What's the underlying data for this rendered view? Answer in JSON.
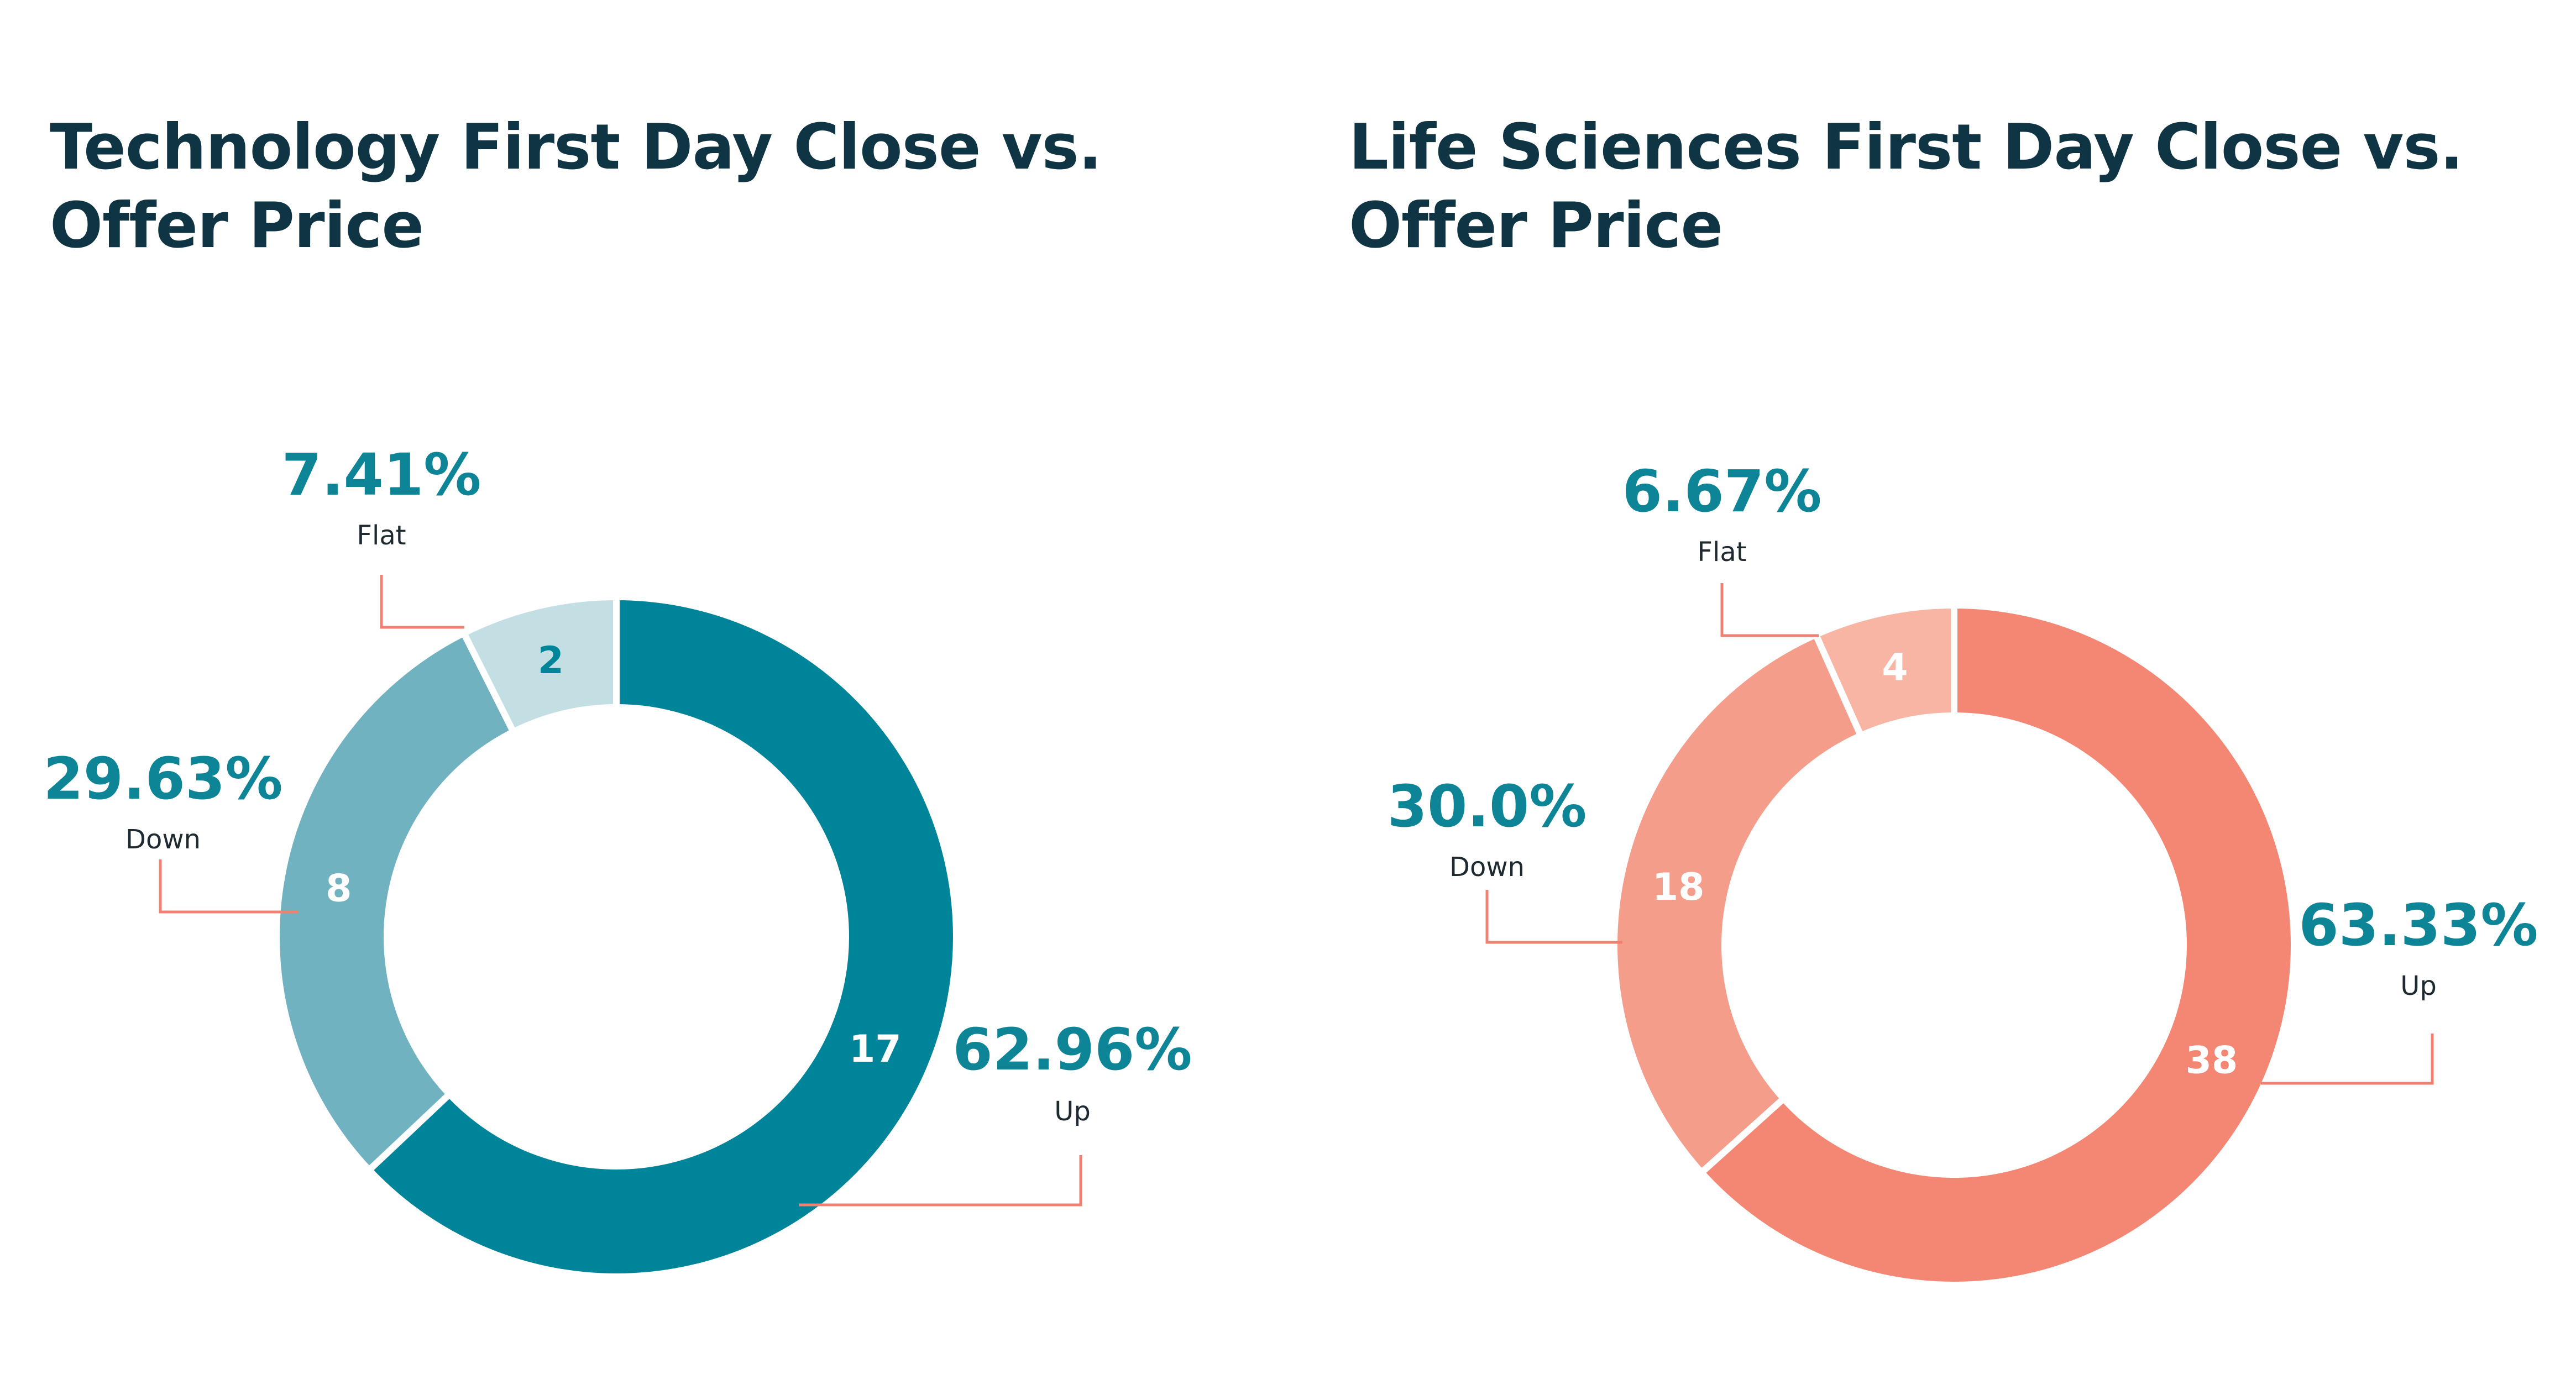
{
  "colors": {
    "title": "#0f3443",
    "percent_text": "#0e8597",
    "label_text": "#1f2a30",
    "leader": "#f08070",
    "separator": "#ffffff"
  },
  "chart_data": [
    {
      "type": "pie",
      "title": "Technology First Day Close vs.\nOffer Price",
      "slices": [
        {
          "name": "Up",
          "value": 17,
          "percent": "62.96%",
          "color": "#00849a",
          "value_text_color": "#ffffff"
        },
        {
          "name": "Down",
          "value": 8,
          "percent": "29.63%",
          "color": "#71b2c1",
          "value_text_color": "#ffffff"
        },
        {
          "name": "Flat",
          "value": 2,
          "percent": "7.41%",
          "color": "#c3dfe4",
          "value_text_color": "#00849a"
        }
      ]
    },
    {
      "type": "pie",
      "title": "Life Sciences First Day Close vs.\nOffer Price",
      "slices": [
        {
          "name": "Up",
          "value": 38,
          "percent": "63.33%",
          "color": "#f48774",
          "value_text_color": "#ffffff"
        },
        {
          "name": "Down",
          "value": 18,
          "percent": "30.0%",
          "color": "#f59d8b",
          "value_text_color": "#ffffff"
        },
        {
          "name": "Flat",
          "value": 4,
          "percent": "6.67%",
          "color": "#f8b5a4",
          "value_text_color": "#ffffff"
        }
      ]
    }
  ]
}
